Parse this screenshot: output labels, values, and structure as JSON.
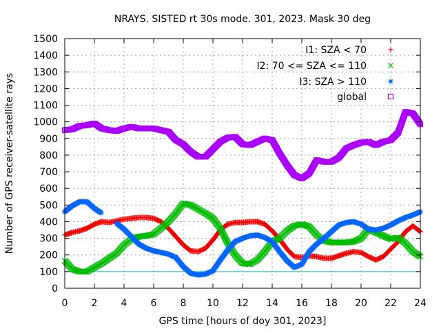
{
  "chart_data": {
    "type": "scatter",
    "title": "NRAYS. SISTED rt 30s mode. 301, 2023. Mask 30 deg",
    "xlabel": "GPS time [hours of doy 301, 2023]",
    "ylabel": "Number of GPS receiver-satellite rays",
    "xlim": [
      0,
      24
    ],
    "ylim": [
      0,
      1500
    ],
    "x_ticks": [
      0,
      2,
      4,
      6,
      8,
      10,
      12,
      14,
      16,
      18,
      20,
      22,
      24
    ],
    "y_ticks": [
      0,
      100,
      200,
      300,
      400,
      500,
      600,
      700,
      800,
      900,
      1000,
      1100,
      1200,
      1300,
      1400,
      1500
    ],
    "grid": true,
    "legend_position": "top-right",
    "reference_line": {
      "y": 100,
      "color": "#00cccc"
    },
    "x": [
      0,
      0.5,
      1,
      1.5,
      2,
      2.5,
      3,
      3.5,
      4,
      4.5,
      5,
      5.5,
      6,
      6.5,
      7,
      7.5,
      8,
      8.5,
      9,
      9.5,
      10,
      10.5,
      11,
      11.5,
      12,
      12.5,
      13,
      13.5,
      14,
      14.5,
      15,
      15.5,
      16,
      16.5,
      17,
      17.5,
      18,
      18.5,
      19,
      19.5,
      20,
      20.5,
      21,
      21.5,
      22,
      22.5,
      23,
      23.5,
      24
    ],
    "series": [
      {
        "name": "I1: SZA < 70",
        "marker": "+",
        "color": "#ee0000",
        "values": [
          320,
          335,
          345,
          360,
          385,
          400,
          395,
          405,
          415,
          420,
          425,
          425,
          420,
          400,
          360,
          310,
          260,
          225,
          220,
          240,
          290,
          350,
          385,
          395,
          395,
          400,
          400,
          385,
          345,
          295,
          235,
          190,
          185,
          195,
          190,
          180,
          180,
          195,
          210,
          220,
          215,
          190,
          170,
          190,
          235,
          280,
          340,
          375,
          340
        ]
      },
      {
        "name": "I2: 70 <= SZA <= 110",
        "marker": "x",
        "color": "#00bb00",
        "values": [
          165,
          115,
          100,
          100,
          125,
          150,
          180,
          210,
          260,
          295,
          310,
          315,
          325,
          360,
          400,
          450,
          510,
          500,
          475,
          450,
          420,
          360,
          270,
          200,
          150,
          145,
          170,
          220,
          280,
          300,
          345,
          375,
          385,
          370,
          320,
          285,
          275,
          275,
          275,
          280,
          300,
          355,
          335,
          315,
          295,
          305,
          270,
          220,
          190
        ]
      },
      {
        "name": "I3: SZA > 110",
        "marker": "*",
        "color": "#0066ff",
        "values": [
          460,
          495,
          520,
          520,
          480,
          450,
          null,
          390,
          355,
          310,
          265,
          240,
          225,
          215,
          205,
          185,
          130,
          90,
          80,
          85,
          105,
          170,
          230,
          280,
          300,
          315,
          320,
          305,
          280,
          220,
          165,
          125,
          145,
          220,
          265,
          300,
          340,
          380,
          395,
          400,
          385,
          355,
          350,
          360,
          380,
          405,
          425,
          440,
          460
        ]
      },
      {
        "name": "global",
        "marker": "square",
        "color": "#aa00ff",
        "values": [
          950,
          955,
          975,
          980,
          990,
          960,
          950,
          945,
          960,
          970,
          960,
          960,
          960,
          950,
          940,
          890,
          865,
          820,
          790,
          790,
          835,
          880,
          905,
          910,
          865,
          860,
          880,
          900,
          890,
          810,
          740,
          680,
          660,
          690,
          770,
          760,
          760,
          785,
          840,
          860,
          875,
          880,
          860,
          880,
          890,
          935,
          1060,
          1050,
          985
        ]
      }
    ]
  }
}
